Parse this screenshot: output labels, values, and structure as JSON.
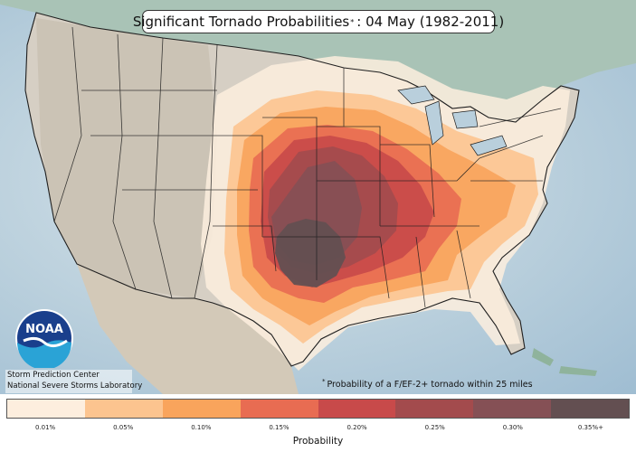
{
  "title": {
    "prefix": "Significant Tornado Probabilities",
    "marker": "*",
    "suffix": ": 04 May (1982-2011)"
  },
  "logo": {
    "text": "NOAA",
    "icon": "noaa-logo-icon"
  },
  "credits": {
    "line1": "Storm Prediction Center",
    "line2": "National Severe Storms Laboratory"
  },
  "footnote": {
    "marker": "*",
    "text": "Probability of a F/EF-2+ tornado within 25 miles"
  },
  "legend": {
    "title": "Probability",
    "levels": [
      {
        "label": "0.01%",
        "color": "#fdeede"
      },
      {
        "label": "0.05%",
        "color": "#fcc48f"
      },
      {
        "label": "0.10%",
        "color": "#f9a45c"
      },
      {
        "label": "0.15%",
        "color": "#e86c52"
      },
      {
        "label": "0.20%",
        "color": "#c84a4a"
      },
      {
        "label": "0.25%",
        "color": "#a34b4d"
      },
      {
        "label": "0.30%",
        "color": "#855055"
      },
      {
        "label": "0.35%+",
        "color": "#634f51"
      }
    ]
  },
  "colors": {
    "ocean": "#b9cfdc",
    "land": "#d6cfc4",
    "canada": "#a9c3b6",
    "mexico": "#d3c9b8",
    "border": "#1f1f1f"
  }
}
